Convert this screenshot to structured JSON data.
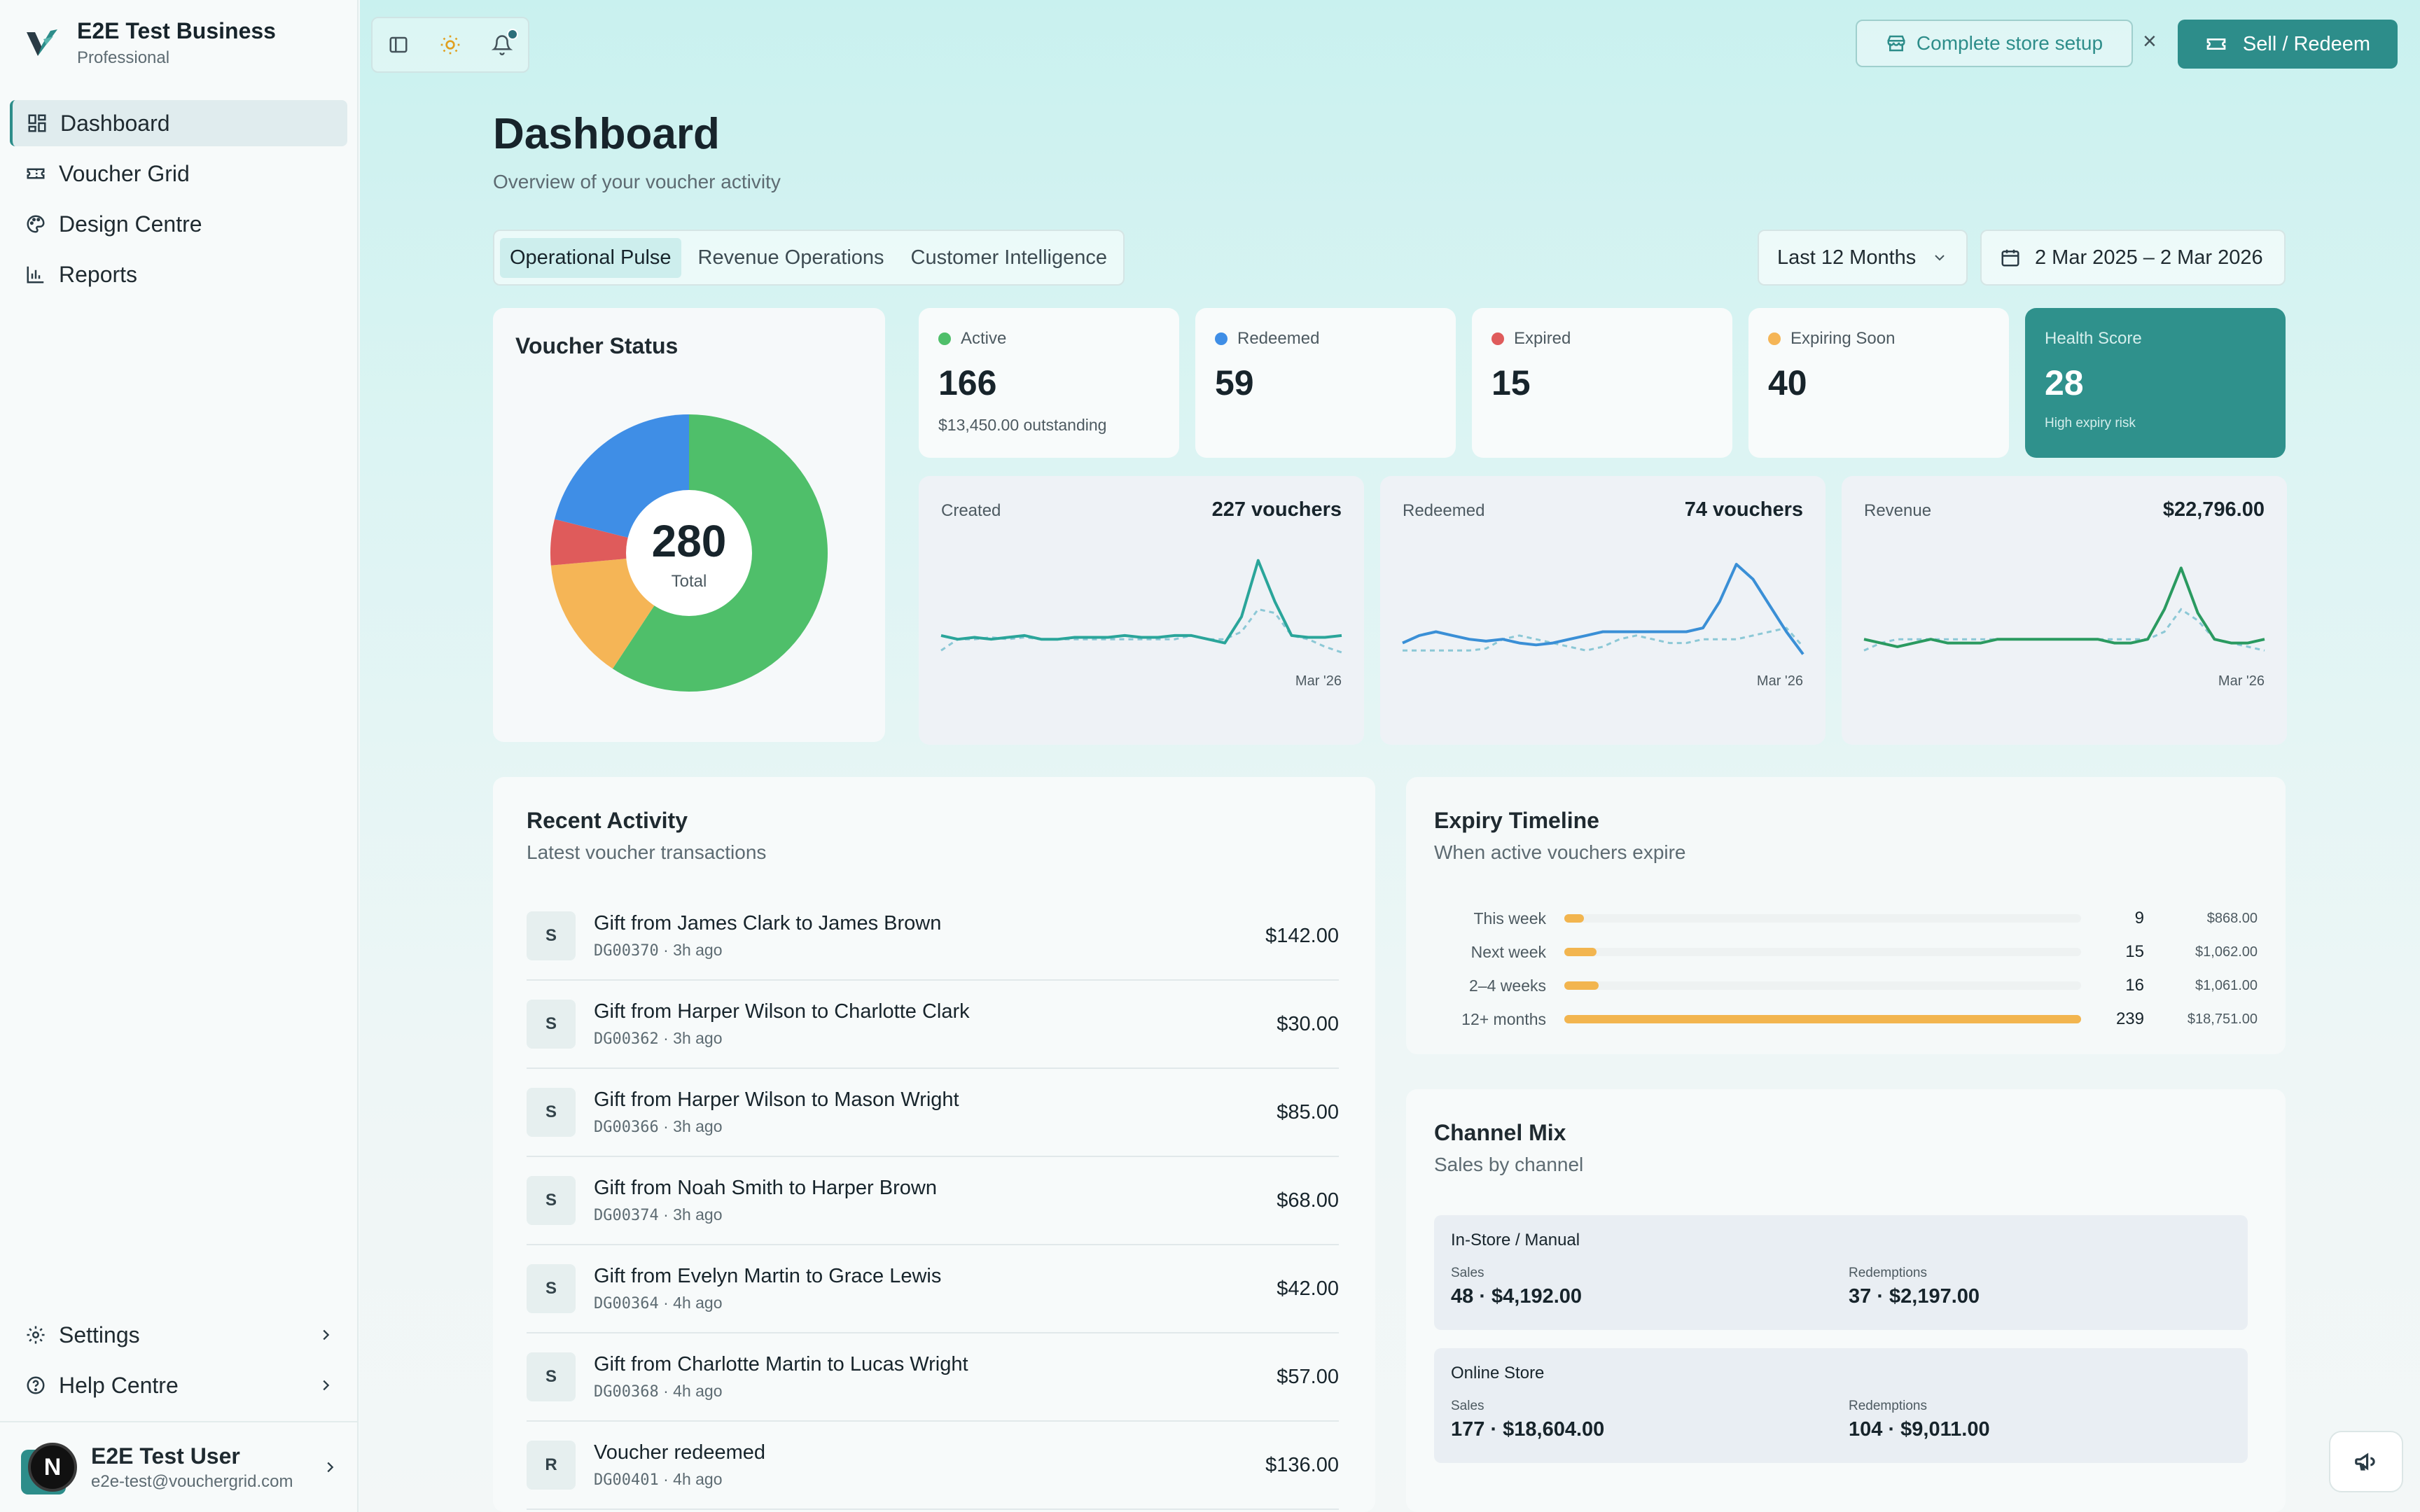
{
  "brand": {
    "name": "E2E Test Business",
    "plan": "Professional"
  },
  "sidebar": {
    "items": [
      {
        "label": "Dashboard",
        "icon": "dashboard-icon",
        "active": true
      },
      {
        "label": "Voucher Grid",
        "icon": "ticket-icon",
        "active": false
      },
      {
        "label": "Design Centre",
        "icon": "palette-icon",
        "active": false
      },
      {
        "label": "Reports",
        "icon": "bar-chart-icon",
        "active": false
      }
    ],
    "bottom": [
      {
        "label": "Settings",
        "icon": "gear-icon"
      },
      {
        "label": "Help Centre",
        "icon": "help-circle-icon"
      }
    ]
  },
  "user": {
    "avatar_letter": "N",
    "name": "E2E Test User",
    "email": "e2e-test@vouchergrid.com"
  },
  "topbar": {
    "setup_label": "Complete store setup",
    "close_label": "×",
    "sell_label": "Sell / Redeem"
  },
  "page": {
    "title": "Dashboard",
    "subtitle": "Overview of your voucher activity"
  },
  "tabs": [
    "Operational Pulse",
    "Revenue Operations",
    "Customer Intelligence"
  ],
  "filters": {
    "range": "Last 12 Months",
    "dates": "2 Mar 2025 – 2 Mar 2026"
  },
  "voucher_status": {
    "title": "Voucher Status",
    "total": "280",
    "total_label": "Total",
    "segments": [
      {
        "name": "Active",
        "value": 166,
        "color": "#4fbf6a"
      },
      {
        "name": "Expiring Soon",
        "value": 40,
        "color": "#f5b556"
      },
      {
        "name": "Expired",
        "value": 15,
        "color": "#df5b5b"
      },
      {
        "name": "Redeemed",
        "value": 59,
        "color": "#3f8ee6"
      }
    ]
  },
  "stats": [
    {
      "label": "Active",
      "value": "166",
      "note": "$13,450.00 outstanding",
      "color": "#4fbf6a"
    },
    {
      "label": "Redeemed",
      "value": "59",
      "note": "",
      "color": "#3f8ee6"
    },
    {
      "label": "Expired",
      "value": "15",
      "note": "",
      "color": "#df5b5b"
    },
    {
      "label": "Expiring Soon",
      "value": "40",
      "note": "",
      "color": "#f5b556"
    }
  ],
  "health": {
    "label": "Health Score",
    "value": "28",
    "note": "High expiry risk"
  },
  "sparks": [
    {
      "label": "Created",
      "value": "227 vouchers",
      "date": "Mar '26",
      "color": "#2aa59a",
      "line": [
        12,
        10,
        11,
        10,
        11,
        12,
        10,
        10,
        11,
        11,
        11,
        12,
        11,
        11,
        12,
        12,
        10,
        8,
        22,
        52,
        30,
        12,
        11,
        11,
        12
      ],
      "prev": [
        4,
        10,
        10,
        11,
        10,
        11,
        10,
        10,
        10,
        10,
        10,
        10,
        10,
        10,
        10,
        12,
        10,
        10,
        14,
        26,
        24,
        12,
        10,
        6,
        3
      ]
    },
    {
      "label": "Redeemed",
      "value": "74 vouchers",
      "date": "Mar '26",
      "color": "#3a8fd6",
      "line": [
        8,
        12,
        14,
        12,
        10,
        9,
        10,
        8,
        7,
        8,
        10,
        12,
        14,
        14,
        14,
        14,
        14,
        14,
        16,
        30,
        50,
        42,
        28,
        14,
        2
      ],
      "prev": [
        4,
        4,
        4,
        4,
        4,
        5,
        10,
        12,
        10,
        8,
        6,
        4,
        6,
        10,
        12,
        10,
        8,
        8,
        10,
        10,
        10,
        12,
        14,
        16,
        6
      ]
    },
    {
      "label": "Revenue",
      "value": "$22,796.00",
      "date": "Mar '26",
      "color": "#2a9a60",
      "line": [
        10,
        8,
        6,
        8,
        10,
        8,
        8,
        8,
        10,
        10,
        10,
        10,
        10,
        10,
        10,
        8,
        8,
        10,
        26,
        48,
        24,
        10,
        8,
        8,
        10
      ],
      "prev": [
        4,
        8,
        10,
        10,
        10,
        10,
        10,
        10,
        10,
        10,
        10,
        10,
        10,
        10,
        10,
        10,
        10,
        10,
        14,
        26,
        20,
        10,
        8,
        6,
        4
      ]
    }
  ],
  "activity": {
    "title": "Recent Activity",
    "subtitle": "Latest voucher transactions",
    "rows": [
      {
        "badge": "S",
        "title": "Gift from James Clark to James Brown",
        "code": "DG00370",
        "time": "· 3h ago",
        "amount": "$142.00"
      },
      {
        "badge": "S",
        "title": "Gift from Harper Wilson to Charlotte Clark",
        "code": "DG00362",
        "time": "· 3h ago",
        "amount": "$30.00"
      },
      {
        "badge": "S",
        "title": "Gift from Harper Wilson to Mason Wright",
        "code": "DG00366",
        "time": "· 3h ago",
        "amount": "$85.00"
      },
      {
        "badge": "S",
        "title": "Gift from Noah Smith to Harper Brown",
        "code": "DG00374",
        "time": "· 3h ago",
        "amount": "$68.00"
      },
      {
        "badge": "S",
        "title": "Gift from Evelyn Martin to Grace Lewis",
        "code": "DG00364",
        "time": "· 4h ago",
        "amount": "$42.00"
      },
      {
        "badge": "S",
        "title": "Gift from Charlotte Martin to Lucas Wright",
        "code": "DG00368",
        "time": "· 4h ago",
        "amount": "$57.00"
      },
      {
        "badge": "R",
        "title": "Voucher redeemed",
        "code": "DG00401",
        "time": "· 4h ago",
        "amount": "$136.00"
      }
    ]
  },
  "expiry": {
    "title": "Expiry Timeline",
    "subtitle": "When active vouchers expire",
    "rows": [
      {
        "label": "This week",
        "count": "9",
        "amount": "$868.00",
        "fraction": 0.038
      },
      {
        "label": "Next week",
        "count": "15",
        "amount": "$1,062.00",
        "fraction": 0.063
      },
      {
        "label": "2–4 weeks",
        "count": "16",
        "amount": "$1,061.00",
        "fraction": 0.067
      },
      {
        "label": "12+ months",
        "count": "239",
        "amount": "$18,751.00",
        "fraction": 1.0
      }
    ]
  },
  "channel": {
    "title": "Channel Mix",
    "subtitle": "Sales by channel",
    "items": [
      {
        "name": "In-Store / Manual",
        "sales_label": "Sales",
        "sales": "48 · $4,192.00",
        "redemptions_label": "Redemptions",
        "redemptions": "37 · $2,197.00"
      },
      {
        "name": "Online Store",
        "sales_label": "Sales",
        "sales": "177 · $18,604.00",
        "redemptions_label": "Redemptions",
        "redemptions": "104 · $9,011.00"
      }
    ]
  },
  "colors": {
    "accent": "#2d8d8a",
    "warning": "#f2b54f"
  }
}
